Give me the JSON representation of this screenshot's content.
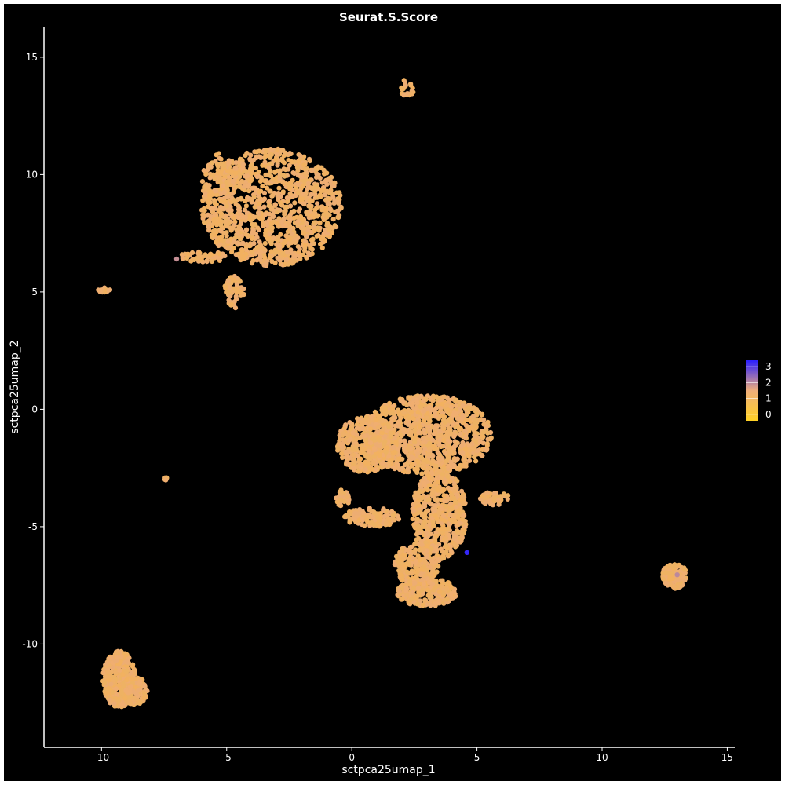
{
  "chart_data": {
    "type": "scatter",
    "title": "Seurat.S.Score",
    "xlabel": "sctpca25umap_1",
    "ylabel": "sctpca25umap_2",
    "xlim": [
      -12.3,
      15.3
    ],
    "ylim": [
      -14.4,
      16.3
    ],
    "xticks": [
      -10,
      -5,
      0,
      5,
      10,
      15
    ],
    "yticks": [
      -10,
      -5,
      0,
      5,
      10,
      15
    ],
    "xtick_labels": [
      "-10",
      "-5",
      "0",
      "5",
      "10",
      "15"
    ],
    "ytick_labels": [
      "-10",
      "-5",
      "0",
      "5",
      "10",
      "15"
    ],
    "grid": false,
    "background": "#000000",
    "legend": {
      "type": "colorbar",
      "placement": "right",
      "ticks": [
        0,
        1,
        2,
        3
      ],
      "labels": [
        "0",
        "1",
        "2",
        "3"
      ],
      "range": [
        -0.4,
        3.4
      ],
      "color_low": "#FFD125",
      "color_mid": "#EFAE7A",
      "color_high": "#2A1FFF"
    },
    "base_color": "#EFB068",
    "clusters": [
      {
        "cx": -3.2,
        "cy": 8.6,
        "rx": 2.8,
        "ry": 2.5,
        "n": 1100
      },
      {
        "cx": -5.3,
        "cy": 9.6,
        "rx": 0.7,
        "ry": 1.3,
        "n": 120
      },
      {
        "cx": -5.9,
        "cy": 6.5,
        "rx": 1.0,
        "ry": 0.22,
        "n": 60
      },
      {
        "cx": -4.7,
        "cy": 5.0,
        "rx": 0.4,
        "ry": 0.7,
        "n": 60
      },
      {
        "cx": -9.9,
        "cy": 5.1,
        "rx": 0.25,
        "ry": 0.12,
        "n": 14
      },
      {
        "cx": 2.2,
        "cy": 13.7,
        "rx": 0.35,
        "ry": 0.35,
        "n": 22
      },
      {
        "cx": -7.4,
        "cy": -2.95,
        "rx": 0.1,
        "ry": 0.08,
        "n": 6
      },
      {
        "cx": 3.0,
        "cy": -1.1,
        "rx": 2.6,
        "ry": 1.7,
        "n": 1000
      },
      {
        "cx": 0.6,
        "cy": -1.5,
        "rx": 1.2,
        "ry": 1.2,
        "n": 350
      },
      {
        "cx": 0.8,
        "cy": -4.6,
        "rx": 1.1,
        "ry": 0.4,
        "n": 130
      },
      {
        "cx": -0.4,
        "cy": -3.8,
        "rx": 0.3,
        "ry": 0.4,
        "n": 35
      },
      {
        "cx": 3.5,
        "cy": -4.5,
        "rx": 1.1,
        "ry": 1.9,
        "n": 500
      },
      {
        "cx": 2.6,
        "cy": -6.6,
        "rx": 0.9,
        "ry": 0.9,
        "n": 200
      },
      {
        "cx": 3.0,
        "cy": -7.8,
        "rx": 1.2,
        "ry": 0.6,
        "n": 260
      },
      {
        "cx": 5.7,
        "cy": -3.8,
        "rx": 0.6,
        "ry": 0.3,
        "n": 50
      },
      {
        "cx": 12.9,
        "cy": -7.1,
        "rx": 0.5,
        "ry": 0.55,
        "n": 130
      },
      {
        "cx": -9.3,
        "cy": -11.5,
        "rx": 0.65,
        "ry": 1.2,
        "n": 380
      },
      {
        "cx": -8.7,
        "cy": -12.0,
        "rx": 0.55,
        "ry": 0.6,
        "n": 140
      }
    ],
    "highlight_points": [
      {
        "x": 4.6,
        "y": -6.1,
        "value": 3.3
      },
      {
        "x": 13.0,
        "y": -7.05,
        "value": 2.0
      },
      {
        "x": -7.0,
        "y": 6.4,
        "value": 1.9
      }
    ]
  }
}
